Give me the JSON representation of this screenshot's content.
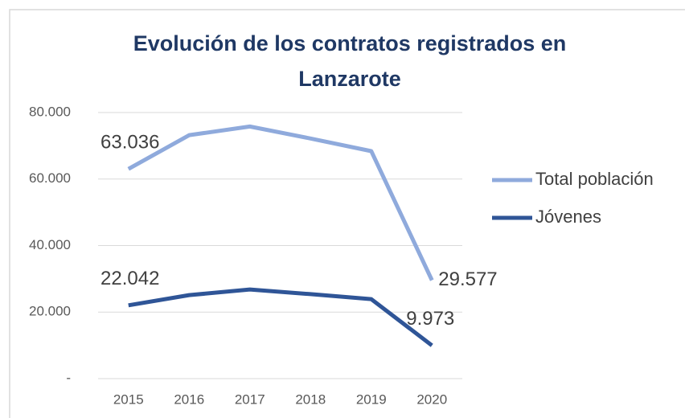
{
  "chart_data": {
    "type": "line",
    "title": "Evolución de los contratos registrados en Lanzarote",
    "categories": [
      "2015",
      "2016",
      "2017",
      "2018",
      "2019",
      "2020"
    ],
    "series": [
      {
        "name": "Total población",
        "color": "#8faadc",
        "values": [
          63036,
          73200,
          75800,
          72200,
          68400,
          29577
        ],
        "value_labels": [
          "63.036",
          null,
          null,
          null,
          null,
          "29.577"
        ]
      },
      {
        "name": "Jóvenes",
        "color": "#2f5597",
        "values": [
          22042,
          25100,
          26800,
          25400,
          23900,
          9973
        ],
        "value_labels": [
          "22.042",
          null,
          null,
          null,
          null,
          "9.973"
        ]
      }
    ],
    "ylim": [
      0,
      80000
    ],
    "yticks": [
      {
        "value": 0,
        "label": "-"
      },
      {
        "value": 20000,
        "label": "20.000"
      },
      {
        "value": 40000,
        "label": "40.000"
      },
      {
        "value": 60000,
        "label": "60.000"
      },
      {
        "value": 80000,
        "label": "80.000"
      }
    ],
    "grid": true,
    "legend": "right"
  }
}
